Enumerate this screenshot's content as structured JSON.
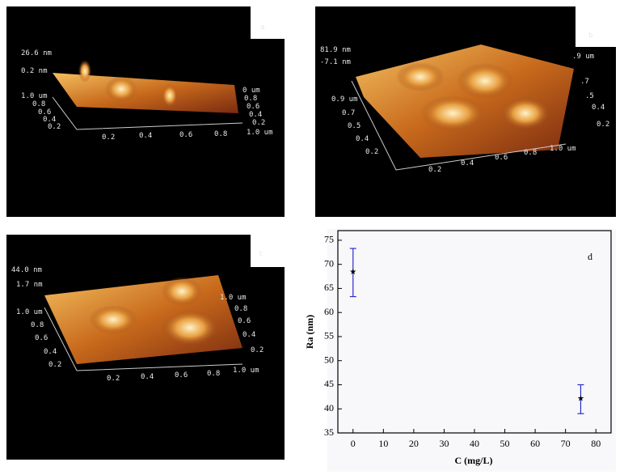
{
  "afm_panels": [
    {
      "letter": "a",
      "labels": [
        "26.6 nm",
        "0.2 nm",
        "1.0 um",
        "0.8",
        "0.6",
        "0.4",
        "0.2",
        "0.2",
        "0.4",
        "0.6",
        "0.8",
        "1.0 um",
        "0 um",
        "0.8",
        "0.6",
        "0.4",
        "0.2"
      ]
    },
    {
      "letter": "b",
      "labels": [
        "81.9 nm",
        "-7.1 nm",
        "0.9 um",
        "0.7",
        "0.5",
        "0.4",
        "0.2",
        "0.2",
        "0.4",
        "0.6",
        "0.8",
        "1.0 um",
        ".9 um",
        ".7",
        ".5",
        "0.4",
        "0.2"
      ]
    },
    {
      "letter": "c",
      "labels": [
        "44.0 nm",
        "1.7 nm",
        "1.0 um",
        "0.8",
        "0.6",
        "0.4",
        "0.2",
        "0.2",
        "0.4",
        "0.6",
        "0.8",
        "1.0 um",
        "1.0 um",
        "0.8",
        "0.6",
        "0.4",
        "0.2"
      ]
    }
  ],
  "chart_data": {
    "type": "errorbar",
    "panel_letter": "d",
    "x_label": "C (mg/L)",
    "y_label": "Ra (nm)",
    "x": [
      0,
      75
    ],
    "values": [
      68.3,
      42
    ],
    "errors": [
      5,
      3
    ],
    "color": "#2a2ad0",
    "marker_color": "#000000",
    "xlim": [
      -5,
      85
    ],
    "xticks": [
      0,
      10,
      20,
      30,
      40,
      50,
      60,
      70,
      80
    ],
    "ylim": [
      35,
      77
    ],
    "yticks": [
      35,
      40,
      45,
      50,
      55,
      60,
      65,
      70,
      75
    ]
  }
}
